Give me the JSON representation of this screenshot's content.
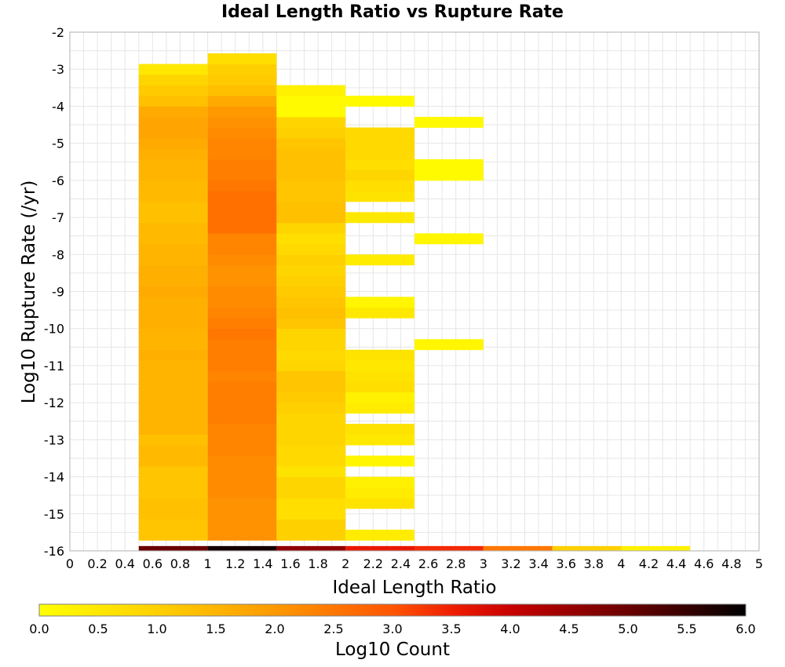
{
  "chart_data": {
    "type": "heatmap",
    "title": "Ideal Length Ratio vs Rupture Rate",
    "xlabel": "Ideal Length Ratio",
    "ylabel": "Log10 Rupture Rate (/yr)",
    "colorbar_label": "Log10 Count",
    "xlim": [
      0,
      5
    ],
    "ylim": [
      -16,
      -2
    ],
    "x_ticks": [
      "0",
      "0.2",
      "0.4",
      "0.6",
      "0.8",
      "1",
      "1.2",
      "1.4",
      "1.6",
      "1.8",
      "2",
      "2.2",
      "2.4",
      "2.6",
      "2.8",
      "3",
      "3.2",
      "3.4",
      "3.6",
      "3.8",
      "4",
      "4.2",
      "4.4",
      "4.6",
      "4.8",
      "5"
    ],
    "y_ticks": [
      "-2",
      "-3",
      "-4",
      "-5",
      "-6",
      "-7",
      "-8",
      "-9",
      "-10",
      "-11",
      "-12",
      "-13",
      "-14",
      "-15",
      "-16"
    ],
    "colorbar_ticks": [
      "0.0",
      "0.5",
      "1.0",
      "1.5",
      "2.0",
      "2.5",
      "3.0",
      "3.5",
      "4.0",
      "4.5",
      "5.0",
      "5.5",
      "6.0"
    ],
    "colorbar_range": [
      0,
      6
    ],
    "grid": true,
    "bin_width_x": 0.5,
    "bin_height_y": 0.2857,
    "columns": [
      {
        "x_start": 0.5,
        "y_bottom": -15.7143,
        "values": [
          1.2,
          1.2,
          1.3,
          1.3,
          1.2,
          1.2,
          1.2,
          1.4,
          1.4,
          1.3,
          1.5,
          1.5,
          1.5,
          1.5,
          1.5,
          1.5,
          1.5,
          1.6,
          1.5,
          1.5,
          1.6,
          1.6,
          1.6,
          1.7,
          1.6,
          1.6,
          1.5,
          1.5,
          1.4,
          1.4,
          1.3,
          1.3,
          1.4,
          1.4,
          1.5,
          1.5,
          1.6,
          1.7,
          1.8,
          1.8,
          1.7,
          1.3,
          1.1,
          0.9,
          0.5
        ]
      },
      {
        "x_start": 1.0,
        "y_bottom": -15.7143,
        "values": [
          2.1,
          2.1,
          2.1,
          2.1,
          2.2,
          2.2,
          2.2,
          2.2,
          2.3,
          2.3,
          2.3,
          2.4,
          2.4,
          2.4,
          2.4,
          2.3,
          2.4,
          2.4,
          2.4,
          2.5,
          2.4,
          2.3,
          2.2,
          2.2,
          2.1,
          2.1,
          2.2,
          2.3,
          2.3,
          2.6,
          2.6,
          2.6,
          2.6,
          2.5,
          2.4,
          2.4,
          2.3,
          2.3,
          2.2,
          2.1,
          2.0,
          1.7,
          1.3,
          1.1,
          1.0,
          0.7
        ]
      },
      {
        "x_start": 1.5,
        "y_bottom": -15.7143,
        "values": [
          1.0,
          1.0,
          0.7,
          0.7,
          0.9,
          0.9,
          0.6,
          0.8,
          0.8,
          0.9,
          0.9,
          0.9,
          1.0,
          1.1,
          1.2,
          1.2,
          0.9,
          0.8,
          0.9,
          0.9,
          1.2,
          1.3,
          1.2,
          1.1,
          1.0,
          0.9,
          1.0,
          0.8,
          0.7,
          0.9,
          1.3,
          1.3,
          1.2,
          1.2,
          1.3,
          1.3,
          1.3,
          1.2,
          1.0,
          0.9,
          0.1,
          0.1,
          0.3
        ]
      },
      {
        "x_start": 2.0,
        "y_bottom": -15.7143,
        "values": [
          0.4,
          null,
          null,
          0.6,
          0.4,
          0.3,
          null,
          0.2,
          null,
          0.5,
          0.6,
          null,
          0.4,
          0.3,
          0.7,
          0.6,
          0.5,
          0.6,
          null,
          null,
          null,
          0.5,
          0.2,
          null,
          null,
          null,
          0.4,
          null,
          null,
          null,
          0.5,
          null,
          0.6,
          0.7,
          0.9,
          0.7,
          0.8,
          0.8,
          0.8,
          null,
          null,
          0.1
        ]
      },
      {
        "x_start": 2.5,
        "y_bottom": -15.7143,
        "values": [
          null,
          null,
          null,
          null,
          null,
          null,
          null,
          null,
          null,
          null,
          null,
          null,
          null,
          null,
          null,
          null,
          null,
          null,
          0.2,
          null,
          null,
          null,
          null,
          null,
          null,
          null,
          null,
          null,
          0.2,
          null,
          null,
          null,
          null,
          null,
          0.1,
          0.1,
          null,
          null,
          null,
          0.1
        ]
      },
      {
        "x_start": 2.0,
        "y_bottom": -16,
        "values": [
          3.6
        ]
      },
      {
        "x_start": 2.5,
        "y_bottom": -16,
        "values": [
          3.4
        ]
      },
      {
        "x_start": 3.0,
        "y_bottom": -16,
        "values": [
          2.5
        ]
      },
      {
        "x_start": 3.5,
        "y_bottom": -16,
        "values": [
          1.0
        ]
      },
      {
        "x_start": 4.0,
        "y_bottom": -16,
        "values": [
          0.3
        ]
      },
      {
        "x_start": 0.5,
        "y_bottom": -16,
        "values": [
          5.0
        ]
      },
      {
        "x_start": 1.0,
        "y_bottom": -16,
        "values": [
          5.8
        ]
      },
      {
        "x_start": 1.5,
        "y_bottom": -16,
        "values": [
          4.6
        ]
      }
    ]
  }
}
